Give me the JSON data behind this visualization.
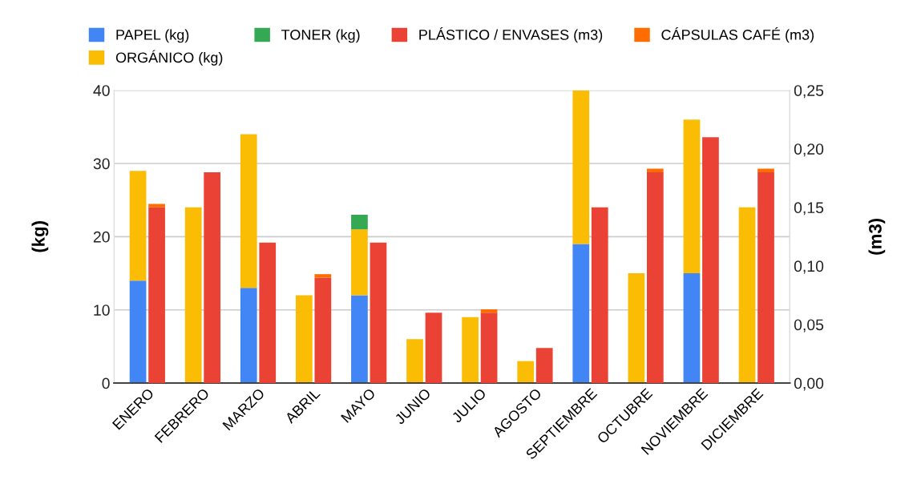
{
  "chart_data": {
    "type": "bar",
    "stacked": true,
    "categories": [
      "ENERO",
      "FEBRERO",
      "MARZO",
      "ABRIL",
      "MAYO",
      "JUNIO",
      "JULIO",
      "AGOSTO",
      "SEPTIEMBRE",
      "OCTUBRE",
      "NOVIEMBRE",
      "DICIEMBRE"
    ],
    "series": [
      {
        "name": "PAPEL (kg)",
        "color": "#4285f4",
        "values": [
          14,
          null,
          13,
          null,
          12,
          null,
          null,
          null,
          19,
          null,
          15,
          null
        ]
      },
      {
        "name": "ORGÁNICO (kg)",
        "color": "#fbbc04",
        "values": [
          15,
          24,
          21,
          12,
          9,
          6,
          9,
          3,
          21,
          15,
          21,
          24
        ]
      },
      {
        "name": "TONER (kg)",
        "color": "#34a853",
        "values": [
          null,
          null,
          null,
          null,
          2,
          null,
          null,
          null,
          null,
          null,
          null,
          null
        ]
      },
      {
        "name": "PLÁSTICO / ENVASES (m3)",
        "color": "#ea4335",
        "axis": "y2",
        "values": [
          0.15,
          0.18,
          0.12,
          0.09,
          0.12,
          0.06,
          0.06,
          0.03,
          0.15,
          0.18,
          0.21,
          0.18
        ]
      },
      {
        "name": "CÁPSULAS CAFÉ (m3)",
        "color": "#ff6d01",
        "axis": "y2",
        "values": [
          0.003,
          null,
          null,
          0.003,
          null,
          null,
          0.003,
          null,
          null,
          0.003,
          null,
          0.003
        ]
      }
    ],
    "ylabel": "(kg)",
    "y2label": "(m3)",
    "ylim": [
      0,
      40
    ],
    "yticks": [
      0,
      10,
      20,
      30,
      40
    ],
    "y2lim": [
      0,
      0.25
    ],
    "y2ticks": [
      {
        "value": 0,
        "label": "0,00"
      },
      {
        "value": 0.05,
        "label": "0,05"
      },
      {
        "value": 0.1,
        "label": "0,10"
      },
      {
        "value": 0.15,
        "label": "0,15"
      },
      {
        "value": 0.2,
        "label": "0,20"
      },
      {
        "value": 0.25,
        "label": "0,25"
      }
    ],
    "grid": "y",
    "legend": "top"
  }
}
